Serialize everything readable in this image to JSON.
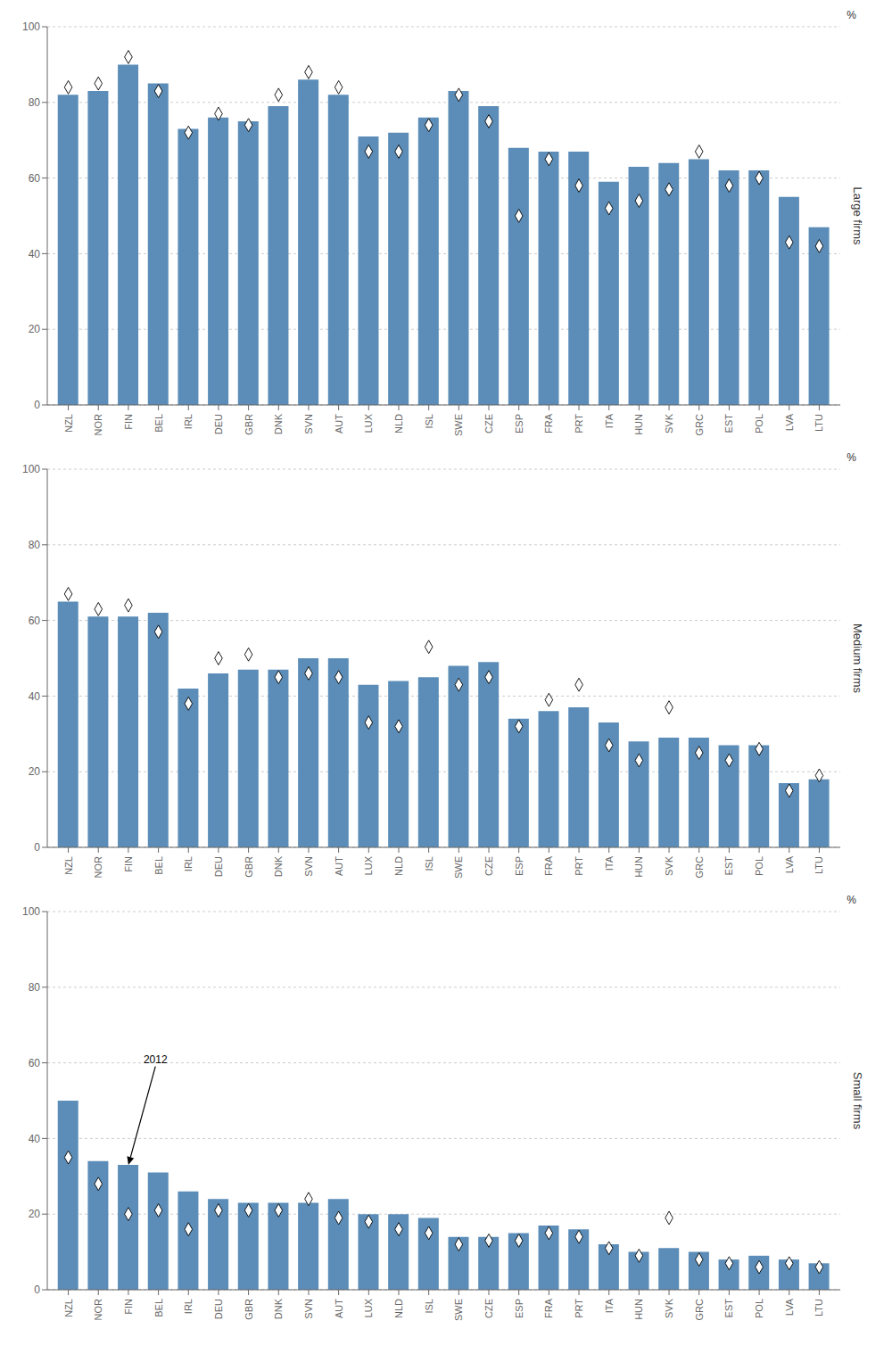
{
  "chart_data": [
    {
      "type": "bar",
      "categories": [
        "NZL",
        "NOR",
        "FIN",
        "BEL",
        "IRL",
        "DEU",
        "GBR",
        "DNK",
        "SVN",
        "AUT",
        "LUX",
        "NLD",
        "ISL",
        "SWE",
        "CZE",
        "ESP",
        "FRA",
        "PRT",
        "ITA",
        "HUN",
        "SVK",
        "GRC",
        "EST",
        "POL",
        "LVA",
        "LTU"
      ],
      "series": [
        {
          "type": "bar",
          "color": "#5b8db8",
          "values": [
            82,
            83,
            90,
            85,
            73,
            76,
            75,
            79,
            86,
            82,
            71,
            72,
            76,
            83,
            79,
            68,
            67,
            67,
            59,
            63,
            64,
            65,
            62,
            62,
            55,
            47
          ]
        },
        {
          "type": "scatter",
          "marker": "diamond",
          "color": "#ffffff",
          "values": [
            84,
            85,
            92,
            83,
            72,
            77,
            74,
            82,
            88,
            84,
            67,
            67,
            74,
            82,
            75,
            50,
            65,
            58,
            52,
            54,
            57,
            67,
            58,
            60,
            43,
            42
          ]
        }
      ],
      "ylim": [
        0,
        100
      ],
      "yticks": [
        0,
        20,
        40,
        60,
        80,
        100
      ],
      "ylabel": "%",
      "y2label": "Large firms",
      "grid": true
    },
    {
      "type": "bar",
      "categories": [
        "NZL",
        "NOR",
        "FIN",
        "BEL",
        "IRL",
        "DEU",
        "GBR",
        "DNK",
        "SVN",
        "AUT",
        "LUX",
        "NLD",
        "ISL",
        "SWE",
        "CZE",
        "ESP",
        "FRA",
        "PRT",
        "ITA",
        "HUN",
        "SVK",
        "GRC",
        "EST",
        "POL",
        "LVA",
        "LTU"
      ],
      "series": [
        {
          "type": "bar",
          "color": "#5b8db8",
          "values": [
            65,
            61,
            61,
            62,
            42,
            46,
            47,
            47,
            50,
            50,
            43,
            44,
            45,
            48,
            49,
            34,
            36,
            37,
            33,
            28,
            29,
            29,
            27,
            27,
            17,
            18
          ]
        },
        {
          "type": "scatter",
          "marker": "diamond",
          "color": "#ffffff",
          "values": [
            67,
            63,
            64,
            57,
            38,
            50,
            51,
            45,
            46,
            45,
            33,
            32,
            53,
            43,
            45,
            32,
            39,
            43,
            27,
            23,
            37,
            25,
            23,
            26,
            15,
            19
          ]
        }
      ],
      "ylim": [
        0,
        100
      ],
      "yticks": [
        0,
        20,
        40,
        60,
        80,
        100
      ],
      "ylabel": "%",
      "y2label": "Medium firms",
      "grid": true
    },
    {
      "type": "bar",
      "categories": [
        "NZL",
        "NOR",
        "FIN",
        "BEL",
        "IRL",
        "DEU",
        "GBR",
        "DNK",
        "SVN",
        "AUT",
        "LUX",
        "NLD",
        "ISL",
        "SWE",
        "CZE",
        "ESP",
        "FRA",
        "PRT",
        "ITA",
        "HUN",
        "SVK",
        "GRC",
        "EST",
        "POL",
        "LVA",
        "LTU"
      ],
      "series": [
        {
          "type": "bar",
          "color": "#5b8db8",
          "values": [
            50,
            34,
            33,
            31,
            26,
            24,
            23,
            23,
            23,
            24,
            20,
            20,
            19,
            14,
            14,
            15,
            17,
            16,
            12,
            10,
            11,
            10,
            8,
            9,
            8,
            7
          ]
        },
        {
          "type": "scatter",
          "marker": "diamond",
          "color": "#ffffff",
          "values": [
            35,
            28,
            20,
            21,
            16,
            21,
            21,
            21,
            24,
            19,
            18,
            16,
            15,
            12,
            13,
            13,
            15,
            14,
            11,
            9,
            19,
            8,
            7,
            6,
            7,
            6
          ]
        }
      ],
      "ylim": [
        0,
        100
      ],
      "yticks": [
        0,
        20,
        40,
        60,
        80,
        100
      ],
      "ylabel": "%",
      "y2label": "Small firms",
      "grid": true,
      "annotations": [
        {
          "text": "2012",
          "x": 2.9,
          "y": 60,
          "arrow_to": {
            "category": "FIN",
            "value": 33
          }
        }
      ]
    }
  ]
}
